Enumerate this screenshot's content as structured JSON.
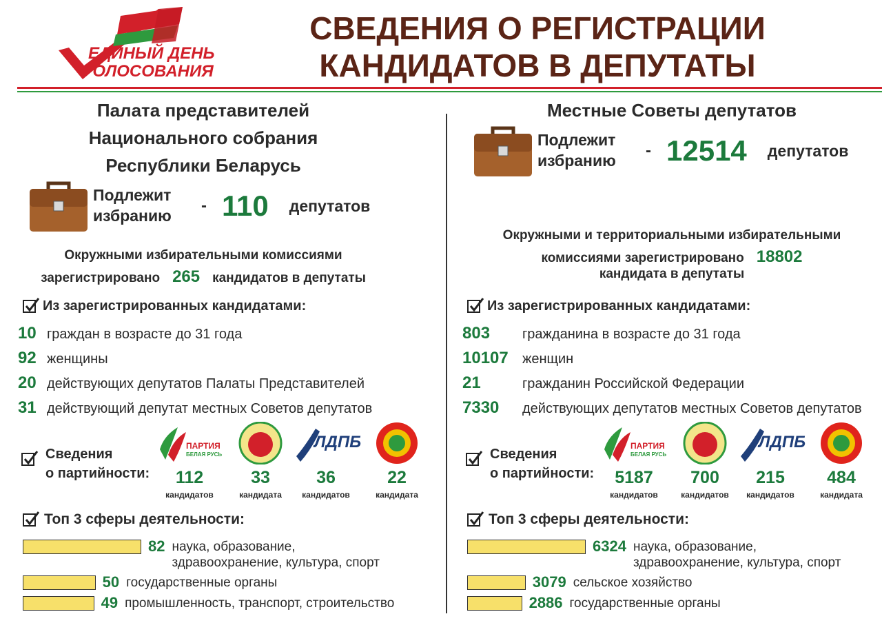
{
  "header": {
    "logo_line1": "ЕДИНЫЙ ДЕНЬ",
    "logo_line2": "ГОЛОСОВАНИЯ",
    "title_line1": "СВЕДЕНИЯ О РЕГИСТРАЦИИ",
    "title_line2": "КАНДИДАТОВ В ДЕПУТАТЫ"
  },
  "columns": [
    {
      "heading": [
        "Палата представителей",
        "Национального собрания",
        "Республики Беларусь"
      ],
      "quota": {
        "label": [
          "Подлежит",
          "избранию"
        ],
        "dash": "-",
        "value": 110,
        "unit": "депутатов"
      },
      "registered": [
        {
          "text": "Окружными избирательными комиссиями"
        },
        {
          "text": "зарегистрировано",
          "value": 265,
          "after": "кандидатов в депутаты"
        }
      ],
      "stats_heading": "Из зарегистрированных кандидатами:",
      "stats": [
        {
          "value": 10,
          "label": "граждан в возрасте до 31 года"
        },
        {
          "value": 92,
          "label": "женщины"
        },
        {
          "value": 20,
          "label": "действующих депутатов Палаты Представителей"
        },
        {
          "value": 31,
          "label": "действующий депутат местных Советов депутатов"
        }
      ],
      "parties_heading": [
        "Сведения",
        "о партийности:"
      ],
      "parties": [
        {
          "name": "ПАРТИЯ",
          "sub": "БЕЛАЯ РУСЬ",
          "value": 112,
          "unit": "кандидатов"
        },
        {
          "value": 33,
          "unit": "кандидата"
        },
        {
          "name": "ЛДПБ",
          "value": 36,
          "unit": "кандидатов"
        },
        {
          "value": 22,
          "unit": "кандидата"
        }
      ],
      "top_heading": "Топ 3 сферы деятельности:",
      "top": [
        {
          "value": 82,
          "label": [
            "наука, образование,",
            "здравоохранение, культура, спорт"
          ]
        },
        {
          "value": 50,
          "label": [
            "государственные органы"
          ]
        },
        {
          "value": 49,
          "label": [
            "промышленность, транспорт, строительство"
          ]
        }
      ]
    },
    {
      "heading": [
        "Местные Советы депутатов"
      ],
      "quota": {
        "label": [
          "Подлежит",
          "избранию"
        ],
        "dash": "-",
        "value": 12514,
        "unit": "депутатов"
      },
      "registered": [
        {
          "text": "Окружными и территориальными избирательными"
        },
        {
          "text": "комиссиями зарегистрировано",
          "value": 18802
        },
        {
          "text": "кандидата в депутаты"
        }
      ],
      "stats_heading": "Из зарегистрированных кандидатами:",
      "stats": [
        {
          "value": 803,
          "label": "гражданина в возрасте до 31 года"
        },
        {
          "value": 10107,
          "label": "женщин"
        },
        {
          "value": 21,
          "label": "гражданин Российской Федерации"
        },
        {
          "value": 7330,
          "label": "действующих депутатов местных Советов депутатов"
        }
      ],
      "parties_heading": [
        "Сведения",
        "о партийности:"
      ],
      "parties": [
        {
          "name": "ПАРТИЯ",
          "sub": "БЕЛАЯ РУСЬ",
          "value": 5187,
          "unit": "кандидатов"
        },
        {
          "value": 700,
          "unit": "кандидатов"
        },
        {
          "name": "ЛДПБ",
          "value": 215,
          "unit": "кандидатов"
        },
        {
          "value": 484,
          "unit": "кандидата"
        }
      ],
      "top_heading": "Топ 3 сферы деятельности:",
      "top": [
        {
          "value": 6324,
          "label": [
            "наука, образование,",
            "здравоохранение, культура, спорт"
          ]
        },
        {
          "value": 3079,
          "label": [
            "сельское хозяйство"
          ]
        },
        {
          "value": 2886,
          "label": [
            "государственные органы"
          ]
        }
      ]
    }
  ]
}
